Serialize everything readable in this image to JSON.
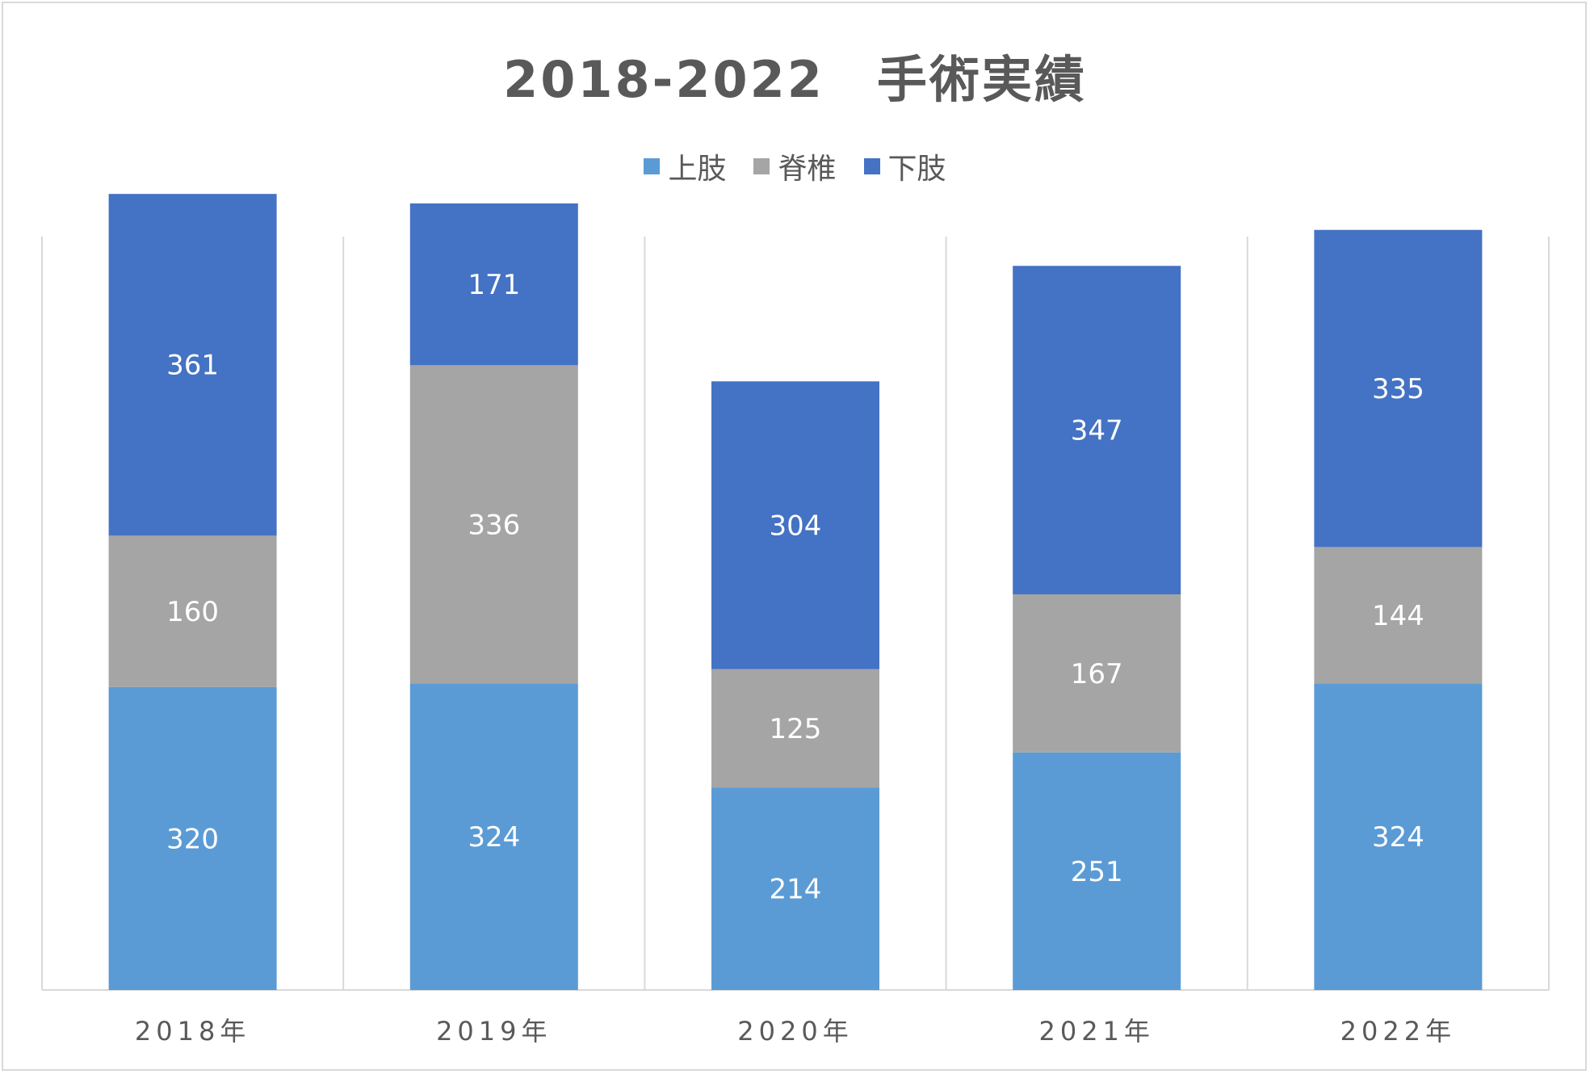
{
  "chart_data": {
    "type": "bar",
    "stacked": true,
    "title": "2018-2022　手術実績",
    "categories": [
      "2018年",
      "2019年",
      "2020年",
      "2021年",
      "2022年"
    ],
    "series": [
      {
        "name": "上肢",
        "color": "#5b9bd5",
        "values": [
          320,
          324,
          214,
          251,
          324
        ]
      },
      {
        "name": "脊椎",
        "color": "#a5a5a5",
        "values": [
          160,
          336,
          125,
          167,
          144
        ]
      },
      {
        "name": "下肢",
        "color": "#4472c4",
        "values": [
          361,
          171,
          304,
          347,
          335
        ]
      }
    ],
    "ylim": [
      0,
      900
    ],
    "grid": "vertical category separators",
    "legend_position": "top",
    "data_labels": true
  }
}
